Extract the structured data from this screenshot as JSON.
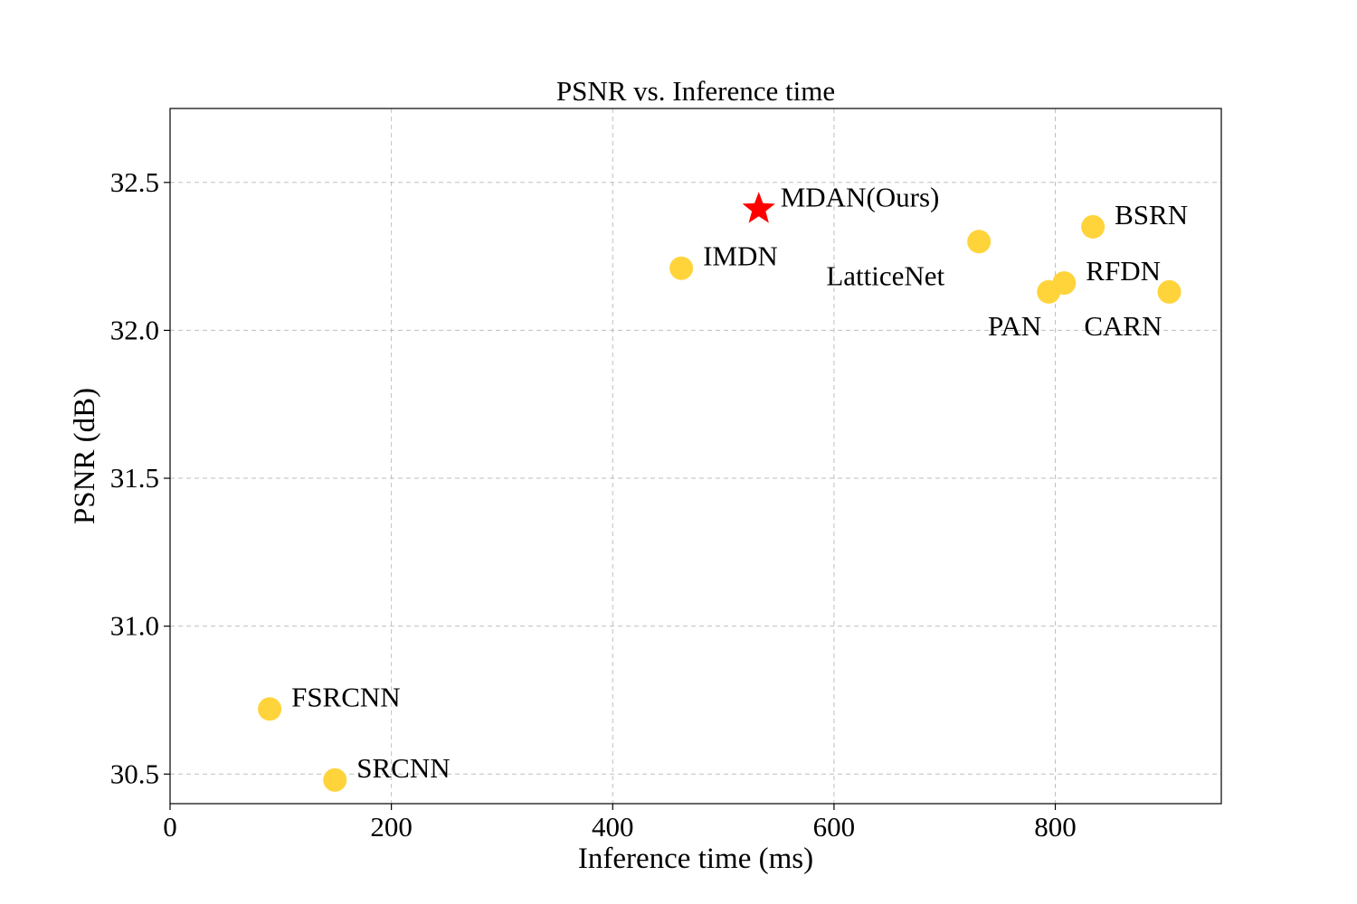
{
  "chart_data": {
    "type": "scatter",
    "title": "PSNR vs. Inference time",
    "xlabel": "Inference time (ms)",
    "ylabel": "PSNR (dB)",
    "xlim": [
      0,
      950
    ],
    "ylim": [
      30.4,
      32.75
    ],
    "xticks": [
      0,
      200,
      400,
      600,
      800
    ],
    "yticks": [
      30.5,
      31.0,
      31.5,
      32.0,
      32.5
    ],
    "xtick_labels": [
      "0",
      "200",
      "400",
      "600",
      "800"
    ],
    "ytick_labels": [
      "30.5",
      "31.0",
      "31.5",
      "32.0",
      "32.5"
    ],
    "grid": true,
    "colors": {
      "point": "#FFD43B",
      "highlight": "#FF0000"
    },
    "points": [
      {
        "name": "FSRCNN",
        "x": 90,
        "y": 30.72,
        "marker": "circle",
        "label_pos": "upper-right"
      },
      {
        "name": "SRCNN",
        "x": 149,
        "y": 30.48,
        "marker": "circle",
        "label_pos": "upper-right"
      },
      {
        "name": "IMDN",
        "x": 462,
        "y": 32.21,
        "marker": "circle",
        "label_pos": "upper-right"
      },
      {
        "name": "MDAN(Ours)",
        "x": 532,
        "y": 32.41,
        "marker": "star",
        "label_pos": "upper-right"
      },
      {
        "name": "LatticeNet",
        "x": 731,
        "y": 32.3,
        "marker": "circle",
        "label_pos": "lower-left"
      },
      {
        "name": "PAN",
        "x": 794,
        "y": 32.13,
        "marker": "circle",
        "label_pos": "below-left"
      },
      {
        "name": "RFDN",
        "x": 808,
        "y": 32.16,
        "marker": "circle",
        "label_pos": "upper-right"
      },
      {
        "name": "BSRN",
        "x": 834,
        "y": 32.35,
        "marker": "circle",
        "label_pos": "upper-right"
      },
      {
        "name": "CARN",
        "x": 903,
        "y": 32.13,
        "marker": "circle",
        "label_pos": "below-left"
      }
    ]
  }
}
